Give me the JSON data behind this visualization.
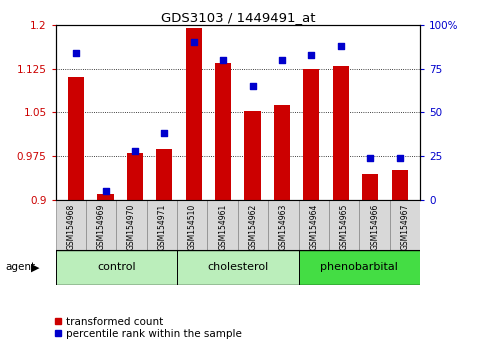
{
  "title": "GDS3103 / 1449491_at",
  "samples": [
    "GSM154968",
    "GSM154969",
    "GSM154970",
    "GSM154971",
    "GSM154510",
    "GSM154961",
    "GSM154962",
    "GSM154963",
    "GSM154964",
    "GSM154965",
    "GSM154966",
    "GSM154967"
  ],
  "transformed_count": [
    1.11,
    0.91,
    0.98,
    0.988,
    1.195,
    1.135,
    1.052,
    1.062,
    1.125,
    1.13,
    0.945,
    0.952
  ],
  "percentile_rank": [
    84,
    5,
    28,
    38,
    90,
    80,
    65,
    80,
    83,
    88,
    24,
    24
  ],
  "groups_def": [
    {
      "label": "control",
      "start": 0,
      "end": 4,
      "color": "#bbeebb"
    },
    {
      "label": "cholesterol",
      "start": 4,
      "end": 8,
      "color": "#bbeebb"
    },
    {
      "label": "phenobarbital",
      "start": 8,
      "end": 12,
      "color": "#44dd44"
    }
  ],
  "bar_color": "#cc0000",
  "dot_color": "#0000cc",
  "ylim_left": [
    0.9,
    1.2
  ],
  "ylim_right": [
    0,
    100
  ],
  "yticks_left": [
    0.9,
    0.975,
    1.05,
    1.125,
    1.2
  ],
  "yticks_right": [
    0,
    25,
    50,
    75,
    100
  ],
  "ytick_labels_left": [
    "0.9",
    "0.975",
    "1.05",
    "1.125",
    "1.2"
  ],
  "ytick_labels_right": [
    "0",
    "25",
    "50",
    "75",
    "100%"
  ],
  "sample_bg_color": "#d8d8d8",
  "sample_border_color": "#888888"
}
